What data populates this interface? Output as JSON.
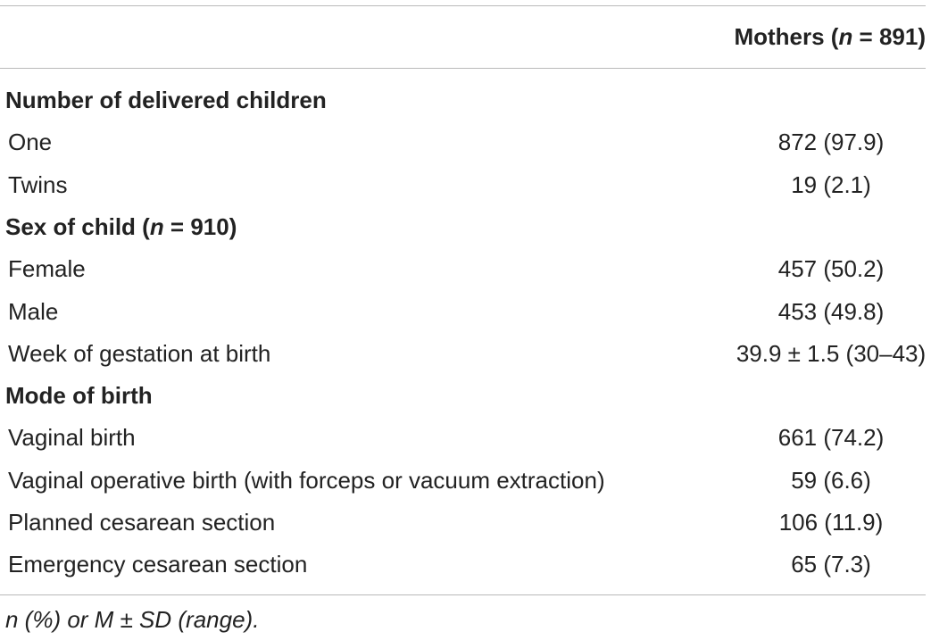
{
  "header": {
    "column_prefix": "Mothers (",
    "column_n": "n",
    "column_suffix": " = 891)"
  },
  "rows": [
    {
      "type": "section",
      "label": "Number of delivered children",
      "value": ""
    },
    {
      "type": "item",
      "label": "One",
      "value": "872 (97.9)"
    },
    {
      "type": "item",
      "label": "Twins",
      "value": "19 (2.1)"
    },
    {
      "type": "section",
      "label_prefix": "Sex of child (",
      "label_n": "n",
      "label_suffix": " = 910)",
      "value": ""
    },
    {
      "type": "item",
      "label": "Female",
      "value": "457 (50.2)"
    },
    {
      "type": "item",
      "label": "Male",
      "value": "453 (49.8)"
    },
    {
      "type": "item",
      "label": "Week of gestation at birth",
      "value": "39.9 ± 1.5 (30–43)"
    },
    {
      "type": "section",
      "label": "Mode of birth",
      "value": ""
    },
    {
      "type": "item",
      "label": "Vaginal birth",
      "value": "661 (74.2)"
    },
    {
      "type": "item",
      "label": "Vaginal operative birth (with forceps or vacuum extraction)",
      "value": "59 (6.6)"
    },
    {
      "type": "item",
      "label": "Planned cesarean section",
      "value": "106 (11.9)"
    },
    {
      "type": "item",
      "label": "Emergency cesarean section",
      "value": "65 (7.3)"
    }
  ],
  "footnote": "n (%) or M ± SD (range)."
}
